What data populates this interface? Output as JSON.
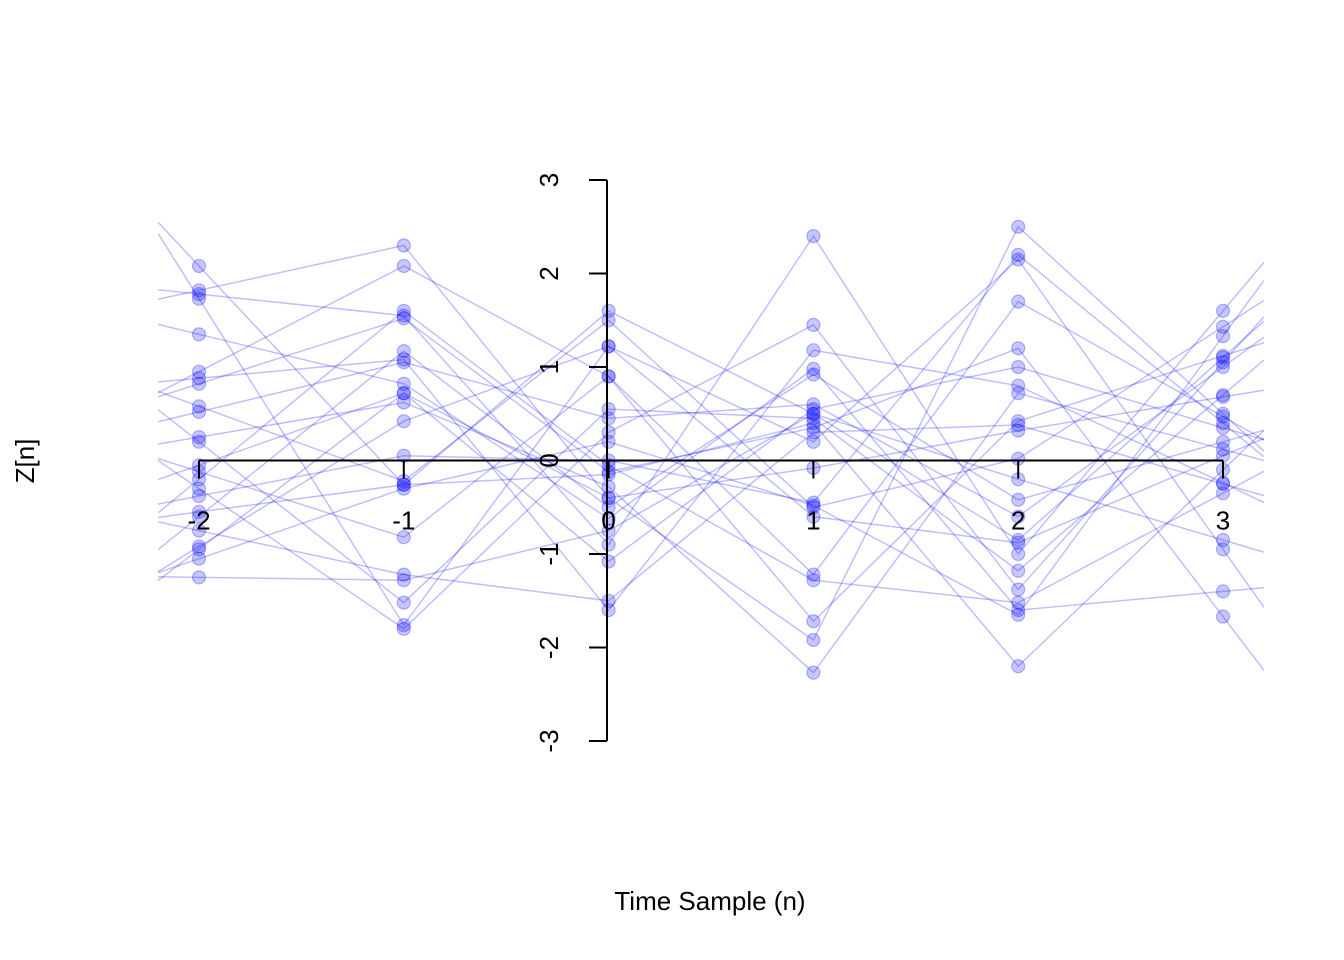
{
  "chart_data": {
    "type": "line",
    "title": "",
    "xlabel": "Time Sample (n)",
    "ylabel": "Z[n]",
    "x": [
      -2,
      -1,
      0,
      1,
      2,
      3
    ],
    "xlim": [
      -2.2,
      3.2
    ],
    "ylim": [
      -3,
      3
    ],
    "x_ticks": [
      "-2",
      "-1",
      "0",
      "1",
      "2",
      "3"
    ],
    "y_ticks": [
      "-3",
      "-2",
      "-1",
      "0",
      "1",
      "2",
      "3"
    ],
    "grid": false,
    "legend": "none",
    "series_color": "#0000ff",
    "axis_color": "#000000",
    "series": [
      {
        "values": [
          2.08,
          -0.26,
          1.6,
          0.5,
          -0.85,
          1.1
        ]
      },
      {
        "values": [
          1.82,
          2.3,
          -0.4,
          -1.92,
          2.5,
          0.5
        ]
      },
      {
        "values": [
          1.78,
          1.55,
          -0.9,
          2.4,
          -1.0,
          1.6
        ]
      },
      {
        "values": [
          1.73,
          -1.76,
          1.22,
          0.2,
          2.15,
          -0.95
        ]
      },
      {
        "values": [
          1.35,
          0.82,
          -0.62,
          0.98,
          -1.6,
          -1.4
        ]
      },
      {
        "values": [
          0.95,
          2.08,
          0.9,
          -1.22,
          1.7,
          0.47
        ]
      },
      {
        "values": [
          0.88,
          1.08,
          -1.6,
          1.18,
          0.8,
          -0.24
        ]
      },
      {
        "values": [
          0.82,
          1.52,
          -0.12,
          0.35,
          1.2,
          -1.67
        ]
      },
      {
        "values": [
          0.58,
          -0.22,
          1.5,
          -0.5,
          0.02,
          1.43
        ]
      },
      {
        "values": [
          0.52,
          1.05,
          0.45,
          0.6,
          -0.6,
          1.0
        ]
      },
      {
        "values": [
          0.25,
          0.62,
          -0.28,
          -2.27,
          0.72,
          0.12
        ]
      },
      {
        "values": [
          0.2,
          -1.52,
          0.55,
          0.45,
          -1.18,
          0.7
        ]
      },
      {
        "values": [
          -0.05,
          0.72,
          -1.08,
          0.55,
          1.0,
          0.35
        ]
      },
      {
        "values": [
          -0.12,
          -0.82,
          0.9,
          -1.72,
          0.42,
          1.12
        ]
      },
      {
        "values": [
          -0.2,
          1.6,
          -0.05,
          -1.28,
          -1.52,
          -0.35
        ]
      },
      {
        "values": [
          -0.3,
          -1.8,
          0.3,
          1.45,
          -1.38,
          1.05
        ]
      },
      {
        "values": [
          -0.38,
          0.05,
          0.0,
          -0.45,
          2.2,
          0.4
        ]
      },
      {
        "values": [
          -0.6,
          1.17,
          -0.5,
          0.92,
          -0.42,
          0.2
        ]
      },
      {
        "values": [
          -0.75,
          -1.22,
          -1.5,
          0.3,
          0.38,
          -0.25
        ]
      },
      {
        "values": [
          -0.92,
          0.42,
          1.22,
          -0.6,
          -0.88,
          0.05
        ]
      },
      {
        "values": [
          -1.05,
          -0.3,
          0.2,
          -0.48,
          -1.65,
          1.33
        ]
      },
      {
        "values": [
          -1.25,
          -1.28,
          -0.75,
          0.5,
          -0.2,
          -0.85
        ]
      },
      {
        "values": [
          -0.95,
          0.72,
          -0.4,
          -0.08,
          0.32,
          0.68
        ]
      },
      {
        "values": [
          -0.55,
          -0.26,
          -0.15,
          0.4,
          -2.2,
          -0.1
        ]
      }
    ]
  }
}
